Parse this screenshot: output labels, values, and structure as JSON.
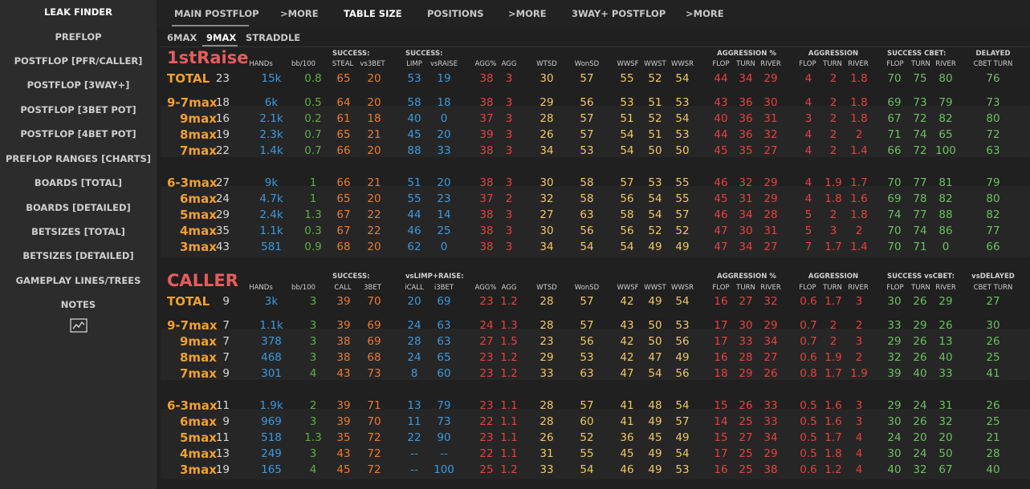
{
  "sidebar": {
    "items": [
      "LEAK FINDER",
      "PREFLOP",
      "POSTFLOP [PFR/CALLER]",
      "POSTFLOP [3WAY+]",
      "POSTFLOP [3BET POT]",
      "POSTFLOP [4BET POT]",
      "PREFLOP RANGES [CHARTS]",
      "BOARDS [TOTAL]",
      "BOARDS [DETAILED]",
      "BETSIZES [TOTAL]",
      "BETSIZES [DETAILED]",
      "GAMEPLAY LINES/TREES",
      "NOTES"
    ],
    "icon": "line-chart-icon"
  },
  "tabs": [
    "MAIN POSTFLOP",
    ">MORE",
    "TABLE SIZE",
    "POSITIONS",
    ">MORE",
    "3WAY+ POSTFLOP",
    ">MORE"
  ],
  "subtabs": [
    "6MAX",
    "9MAX",
    "STRADDLE"
  ],
  "colors": {
    "label": "#f0a030",
    "title": "#e85c5c",
    "blue": "#3a9ae0",
    "green": "#5fb040",
    "orange": "#ee7a2e",
    "red": "#e84040",
    "yellow": "#f0c860",
    "lgreen": "#6cc060"
  },
  "sections": [
    {
      "title": "1stRaise",
      "headers": {
        "top": [
          "SUCCESS:",
          "SUCCESS:",
          "AGGRESSION %",
          "AGGRESSION",
          "SUCCESS CBET:",
          "DELAYED"
        ],
        "bottom": [
          "HANDs",
          "bb/100",
          "STEAL",
          "vs3BET",
          "LIMP",
          "vsRAISE",
          "AGG%",
          "AGG",
          "WTSD",
          "WonSD",
          "WWSF",
          "WWST",
          "WWSR",
          "FLOP",
          "TURN",
          "RIVER",
          "FLOP",
          "TURN",
          "RIVER",
          "FLOP",
          "TURN",
          "RIVER",
          "CBET TURN"
        ]
      },
      "rows": [
        [
          "TOTAL",
          "23",
          "15k",
          "0.8",
          "65",
          "20",
          "53",
          "19",
          "38",
          "3",
          "30",
          "57",
          "55",
          "52",
          "54",
          "44",
          "34",
          "29",
          "4",
          "2",
          "1.8",
          "70",
          "75",
          "80",
          "76"
        ],
        [
          "9-7max",
          "18",
          "6k",
          "0.5",
          "64",
          "20",
          "58",
          "18",
          "38",
          "3",
          "29",
          "56",
          "53",
          "51",
          "53",
          "43",
          "36",
          "30",
          "4",
          "2",
          "1.8",
          "69",
          "73",
          "79",
          "73"
        ],
        [
          "9max",
          "16",
          "2.1k",
          "0.2",
          "61",
          "18",
          "40",
          "0",
          "37",
          "3",
          "28",
          "57",
          "51",
          "52",
          "54",
          "40",
          "36",
          "31",
          "3",
          "2",
          "1.8",
          "67",
          "72",
          "82",
          "80"
        ],
        [
          "8max",
          "19",
          "2.3k",
          "0.7",
          "65",
          "21",
          "45",
          "20",
          "39",
          "3",
          "26",
          "57",
          "54",
          "51",
          "53",
          "44",
          "36",
          "32",
          "4",
          "2",
          "2",
          "71",
          "74",
          "65",
          "72"
        ],
        [
          "7max",
          "22",
          "1.4k",
          "0.7",
          "66",
          "20",
          "88",
          "33",
          "38",
          "3",
          "34",
          "53",
          "54",
          "50",
          "50",
          "45",
          "35",
          "27",
          "4",
          "2",
          "1.4",
          "66",
          "72",
          "100",
          "63"
        ],
        [
          "6-3max",
          "27",
          "9k",
          "1",
          "66",
          "21",
          "51",
          "20",
          "38",
          "3",
          "30",
          "58",
          "57",
          "53",
          "55",
          "46",
          "32",
          "29",
          "4",
          "1.9",
          "1.7",
          "70",
          "77",
          "81",
          "79"
        ],
        [
          "6max",
          "24",
          "4.7k",
          "1",
          "65",
          "20",
          "55",
          "23",
          "37",
          "2",
          "32",
          "58",
          "56",
          "54",
          "55",
          "45",
          "31",
          "29",
          "4",
          "1.8",
          "1.6",
          "69",
          "78",
          "82",
          "80"
        ],
        [
          "5max",
          "29",
          "2.4k",
          "1.3",
          "67",
          "22",
          "44",
          "14",
          "38",
          "3",
          "27",
          "63",
          "58",
          "54",
          "57",
          "46",
          "34",
          "28",
          "5",
          "2",
          "1.8",
          "74",
          "77",
          "88",
          "82"
        ],
        [
          "4max",
          "35",
          "1.1k",
          "0.3",
          "67",
          "22",
          "46",
          "25",
          "38",
          "3",
          "30",
          "56",
          "56",
          "52",
          "52",
          "47",
          "30",
          "31",
          "5",
          "3",
          "2",
          "70",
          "74",
          "86",
          "77"
        ],
        [
          "3max",
          "43",
          "581",
          "0.9",
          "68",
          "20",
          "62",
          "0",
          "38",
          "3",
          "34",
          "54",
          "54",
          "49",
          "49",
          "47",
          "34",
          "27",
          "7",
          "1.7",
          "1.4",
          "70",
          "71",
          "0",
          "66"
        ]
      ]
    },
    {
      "title": "CALLER",
      "headers": {
        "top": [
          "SUCCESS:",
          "vsLIMP+RAISE:",
          "AGGRESSION %",
          "AGGRESSION",
          "SUCCESS vsCBET:",
          "vsDELAYED"
        ],
        "bottom": [
          "HANDs",
          "bb/100",
          "CALL",
          "3BET",
          "iCALL",
          "i3BET",
          "AGG%",
          "AGG",
          "WTSD",
          "WonSD",
          "WWSF",
          "WWST",
          "WWSR",
          "FLOP",
          "TURN",
          "RIVER",
          "FLOP",
          "TURN",
          "RIVER",
          "FLOP",
          "TURN",
          "RIVER",
          "CBET TURN"
        ]
      },
      "rows": [
        [
          "TOTAL",
          "9",
          "3k",
          "3",
          "39",
          "70",
          "20",
          "69",
          "23",
          "1.2",
          "28",
          "57",
          "42",
          "49",
          "54",
          "16",
          "27",
          "32",
          "0.6",
          "1.7",
          "3",
          "30",
          "26",
          "29",
          "27"
        ],
        [
          "9-7max",
          "7",
          "1.1k",
          "3",
          "39",
          "69",
          "24",
          "63",
          "24",
          "1.3",
          "28",
          "57",
          "43",
          "50",
          "53",
          "17",
          "30",
          "29",
          "0.7",
          "2",
          "2",
          "33",
          "29",
          "26",
          "30"
        ],
        [
          "9max",
          "7",
          "378",
          "3",
          "38",
          "69",
          "28",
          "63",
          "27",
          "1.5",
          "23",
          "56",
          "42",
          "50",
          "56",
          "17",
          "33",
          "34",
          "0.7",
          "2",
          "3",
          "29",
          "26",
          "13",
          "26"
        ],
        [
          "8max",
          "7",
          "468",
          "3",
          "38",
          "68",
          "24",
          "65",
          "23",
          "1.2",
          "29",
          "53",
          "42",
          "47",
          "49",
          "16",
          "28",
          "27",
          "0.6",
          "1.9",
          "2",
          "32",
          "26",
          "40",
          "25"
        ],
        [
          "7max",
          "9",
          "301",
          "4",
          "43",
          "73",
          "8",
          "60",
          "23",
          "1.2",
          "33",
          "63",
          "47",
          "54",
          "56",
          "18",
          "29",
          "26",
          "0.8",
          "1.7",
          "1.9",
          "39",
          "40",
          "33",
          "41"
        ],
        [
          "6-3max",
          "11",
          "1.9k",
          "2",
          "39",
          "71",
          "13",
          "79",
          "23",
          "1.1",
          "28",
          "57",
          "41",
          "48",
          "54",
          "15",
          "26",
          "33",
          "0.5",
          "1.6",
          "3",
          "29",
          "24",
          "31",
          "26"
        ],
        [
          "6max",
          "9",
          "969",
          "3",
          "39",
          "70",
          "11",
          "73",
          "22",
          "1.1",
          "28",
          "60",
          "41",
          "49",
          "57",
          "14",
          "25",
          "33",
          "0.5",
          "1.6",
          "3",
          "30",
          "26",
          "32",
          "25"
        ],
        [
          "5max",
          "11",
          "518",
          "1.3",
          "35",
          "72",
          "22",
          "90",
          "23",
          "1.1",
          "26",
          "52",
          "36",
          "45",
          "49",
          "15",
          "27",
          "34",
          "0.5",
          "1.7",
          "4",
          "24",
          "20",
          "20",
          "21"
        ],
        [
          "4max",
          "13",
          "249",
          "3",
          "43",
          "72",
          "--",
          "--",
          "22",
          "1.1",
          "31",
          "55",
          "45",
          "49",
          "54",
          "17",
          "25",
          "29",
          "0.5",
          "1.8",
          "4",
          "30",
          "24",
          "50",
          "28"
        ],
        [
          "3max",
          "19",
          "165",
          "4",
          "45",
          "72",
          "--",
          "100",
          "25",
          "1.2",
          "33",
          "54",
          "46",
          "49",
          "53",
          "16",
          "25",
          "38",
          "0.6",
          "1.2",
          "4",
          "40",
          "32",
          "67",
          "40"
        ]
      ]
    }
  ]
}
